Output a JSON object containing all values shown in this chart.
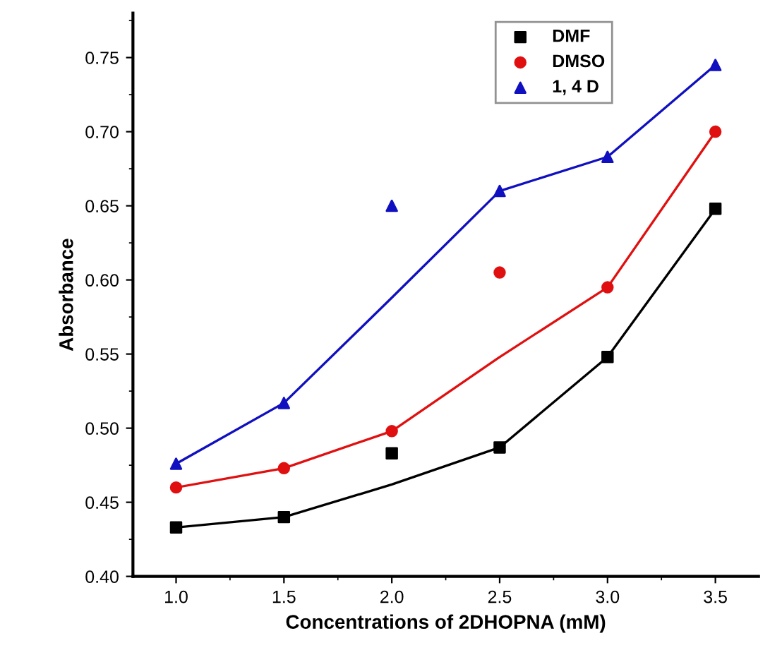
{
  "chart_data": {
    "type": "scatter",
    "xlabel": "Concentrations of 2DHOPNA (mM)",
    "ylabel": "Absorbance",
    "x": [
      1.0,
      1.5,
      2.0,
      2.5,
      3.0,
      3.5
    ],
    "xlim": [
      0.8,
      3.7
    ],
    "xticks": [
      {
        "value": 1.0,
        "label": "1.0"
      },
      {
        "value": 1.5,
        "label": "1.5"
      },
      {
        "value": 2.0,
        "label": "2.0"
      },
      {
        "value": 2.5,
        "label": "2.5"
      },
      {
        "value": 3.0,
        "label": "3.0"
      },
      {
        "value": 3.5,
        "label": "3.5"
      }
    ],
    "ylim": [
      0.4,
      0.78
    ],
    "yticks": [
      {
        "value": 0.4,
        "label": "0.40"
      },
      {
        "value": 0.45,
        "label": "0.45"
      },
      {
        "value": 0.5,
        "label": "0.50"
      },
      {
        "value": 0.55,
        "label": "0.55"
      },
      {
        "value": 0.6,
        "label": "0.60"
      },
      {
        "value": 0.65,
        "label": "0.65"
      },
      {
        "value": 0.7,
        "label": "0.70"
      },
      {
        "value": 0.75,
        "label": "0.75"
      }
    ],
    "legend": "top right",
    "grid": false,
    "series": [
      {
        "name": "DMF",
        "color": "#000000",
        "marker": "square",
        "values": [
          0.433,
          0.44,
          0.483,
          0.487,
          0.548,
          0.648
        ]
      },
      {
        "name": "DMSO",
        "color": "#e01010",
        "marker": "circle",
        "values": [
          0.46,
          0.473,
          0.498,
          0.605,
          0.595,
          0.7
        ]
      },
      {
        "name": "1, 4 D",
        "color": "#1010c0",
        "marker": "triangle",
        "values": [
          0.476,
          0.517,
          0.65,
          0.66,
          0.683,
          0.745
        ]
      },
      {
        "type": "line",
        "color": "#000000",
        "marker": "none",
        "values": [
          0.433,
          0.44,
          0.462,
          0.487,
          0.548,
          0.648
        ]
      },
      {
        "type": "line",
        "color": "#e01010",
        "marker": "none",
        "values": [
          0.46,
          0.473,
          0.498,
          0.548,
          0.595,
          0.7
        ]
      },
      {
        "type": "line",
        "color": "#1010c0",
        "marker": "none",
        "values": [
          0.476,
          0.517,
          0.588,
          0.66,
          0.683,
          0.745
        ]
      }
    ]
  }
}
